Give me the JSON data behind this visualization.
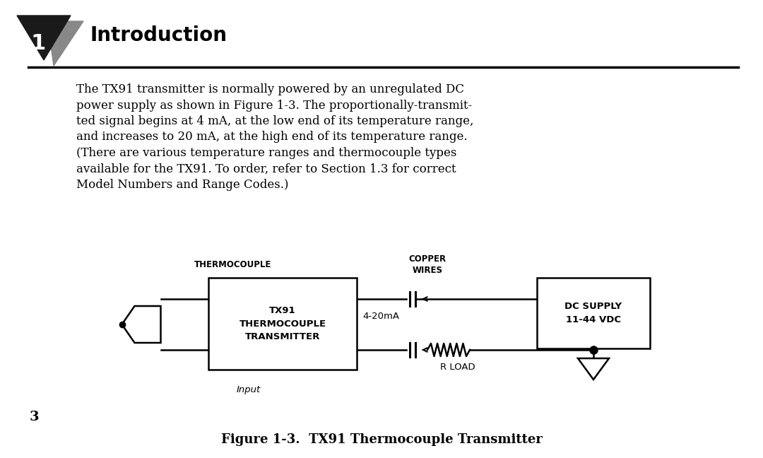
{
  "bg_color": "#ffffff",
  "header_num": "1",
  "header_text": "Introduction",
  "divider_color": "#000000",
  "body_text_lines": [
    "The TX91 transmitter is normally powered by an unregulated DC",
    "power supply as shown in Figure 1-3. The proportionally-transmit-",
    "ted signal begins at 4 mA, at the low end of its temperature range,",
    "and increases to 20 mA, at the high end of its temperature range.",
    "(There are various temperature ranges and thermocouple types",
    "available for the TX91. To order, refer to Section 1.3 for correct",
    "Model Numbers and Range Codes.)"
  ],
  "page_num": "3",
  "fig_caption": "Figure 1-3.  TX91 Thermocouple Transmitter",
  "diagram": {
    "thermocouple_label": "THERMOCOUPLE",
    "copper_wires_label": "COPPER\nWIRES",
    "dc_supply_label": "DC SUPPLY\n11-44 VDC",
    "tx91_label": "TX91\nTHERMOCOUPLE\nTRANSMITTER",
    "current_label": "4-20mA",
    "input_label": "Input",
    "rload_label": "R LOAD"
  }
}
